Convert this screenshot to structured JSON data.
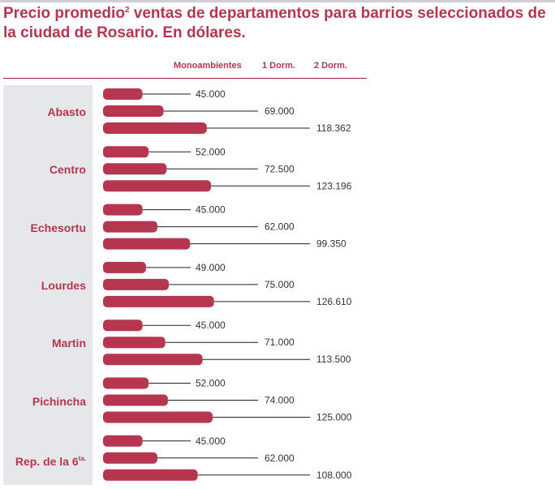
{
  "title_part1": "Precio promedio",
  "title_sup": "2",
  "title_part2": " ventas de departamentos para barrios seleccionados de la ciudad de Rosario. En dólares.",
  "chart_data": {
    "type": "bar",
    "orientation": "horizontal",
    "series": [
      {
        "name": "Monoambientes",
        "values": [
          45000,
          52000,
          45000,
          49000,
          45000,
          52000,
          45000
        ]
      },
      {
        "name": "1 Dorm.",
        "values": [
          69000,
          72500,
          62000,
          75000,
          71000,
          74000,
          62000
        ]
      },
      {
        "name": "2 Dorm.",
        "values": [
          118362,
          123196,
          99350,
          126610,
          113500,
          125000,
          108000
        ]
      }
    ],
    "categories": [
      {
        "name": "Abasto",
        "sup": ""
      },
      {
        "name": "Centro",
        "sup": ""
      },
      {
        "name": "Echesortu",
        "sup": ""
      },
      {
        "name": "Lourdes",
        "sup": ""
      },
      {
        "name": "Martin",
        "sup": ""
      },
      {
        "name": "Pichincha",
        "sup": ""
      },
      {
        "name": "Rep. de la 6",
        "sup": "ta."
      }
    ],
    "value_labels": [
      [
        "45.000",
        "69.000",
        "118.362"
      ],
      [
        "52.000",
        "72.500",
        "123.196"
      ],
      [
        "45.000",
        "62.000",
        "99.350"
      ],
      [
        "49.000",
        "75.000",
        "126.610"
      ],
      [
        "45.000",
        "71.000",
        "113.500"
      ],
      [
        "52.000",
        "74.000",
        "125.000"
      ],
      [
        "45.000",
        "62.000",
        "108.000"
      ]
    ],
    "bar_color": "#b5364e",
    "legend_position": "top",
    "grid": false
  }
}
